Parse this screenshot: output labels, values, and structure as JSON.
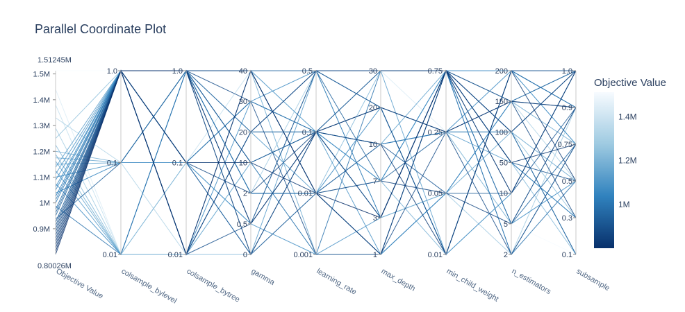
{
  "chart_data": {
    "type": "parallel_coordinates",
    "title": "Parallel Coordinate Plot",
    "axes": [
      {
        "label": "Objective Value",
        "scale": "linear",
        "range": [
          800260,
          1512450
        ],
        "tick_labels": [
          "0.9M",
          "1M",
          "1.1M",
          "1.2M",
          "1.3M",
          "1.4M",
          "1.5M"
        ],
        "tick_values": [
          900000,
          1000000,
          1100000,
          1200000,
          1300000,
          1400000,
          1500000
        ],
        "min_label": "0.80026M",
        "max_label": "1.51245M"
      },
      {
        "label": "colsample_bylevel",
        "scale": "categorical",
        "tick_labels": [
          "0.01",
          "0.1",
          "1.0"
        ]
      },
      {
        "label": "colsample_bytree",
        "scale": "categorical",
        "tick_labels": [
          "0.01",
          "0.1",
          "1.0"
        ]
      },
      {
        "label": "gamma",
        "scale": "categorical",
        "tick_labels": [
          "0",
          "0.5",
          "2",
          "10",
          "20",
          "30",
          "40"
        ]
      },
      {
        "label": "learning_rate",
        "scale": "categorical",
        "tick_labels": [
          "0.001",
          "0.01",
          "0.1",
          "0.5"
        ]
      },
      {
        "label": "max_depth",
        "scale": "categorical",
        "tick_labels": [
          "1",
          "3",
          "7",
          "10",
          "20",
          "30"
        ]
      },
      {
        "label": "min_child_weight",
        "scale": "categorical",
        "tick_labels": [
          "0.01",
          "0.05",
          "0.25",
          "0.75"
        ]
      },
      {
        "label": "n_estimators",
        "scale": "categorical",
        "tick_labels": [
          "2",
          "5",
          "10",
          "50",
          "100",
          "150",
          "200"
        ]
      },
      {
        "label": "subsample",
        "scale": "categorical",
        "tick_labels": [
          "0.1",
          "0.3",
          "0.5",
          "0.75",
          "0.9",
          "1.0"
        ]
      }
    ],
    "lines": [
      {
        "objective": 800260,
        "values": [
          "1.0",
          "0.01",
          "40",
          "0.01",
          "3",
          "0.75",
          "10",
          "1.0"
        ]
      },
      {
        "objective": 812000,
        "values": [
          "1.0",
          "1.0",
          "0.5",
          "0.1",
          "20",
          "0.25",
          "150",
          "0.9"
        ]
      },
      {
        "objective": 825000,
        "values": [
          "1.0",
          "0.1",
          "10",
          "0.01",
          "1",
          "0.75",
          "50",
          "0.75"
        ]
      },
      {
        "objective": 838000,
        "values": [
          "1.0",
          "1.0",
          "0",
          "0.1",
          "10",
          "0.01",
          "200",
          "0.5"
        ]
      },
      {
        "objective": 850000,
        "values": [
          "1.0",
          "0.01",
          "20",
          "0.5",
          "30",
          "0.75",
          "100",
          "1.0"
        ]
      },
      {
        "objective": 862000,
        "values": [
          "1.0",
          "1.0",
          "40",
          "0.01",
          "7",
          "0.05",
          "5",
          "0.9"
        ]
      },
      {
        "objective": 875000,
        "values": [
          "1.0",
          "0.1",
          "2",
          "0.1",
          "3",
          "0.75",
          "150",
          "0.3"
        ]
      },
      {
        "objective": 888000,
        "values": [
          "1.0",
          "1.0",
          "30",
          "0.001",
          "1",
          "0.25",
          "2",
          "0.75"
        ]
      },
      {
        "objective": 900000,
        "values": [
          "1.0",
          "0.01",
          "0.5",
          "0.5",
          "20",
          "0.01",
          "200",
          "1.0"
        ]
      },
      {
        "objective": 912000,
        "values": [
          "1.0",
          "1.0",
          "10",
          "0.1",
          "30",
          "0.75",
          "50",
          "0.5"
        ]
      },
      {
        "objective": 925000,
        "values": [
          "1.0",
          "0.1",
          "0",
          "0.01",
          "10",
          "0.05",
          "10",
          "0.9"
        ]
      },
      {
        "objective": 938000,
        "values": [
          "0.1",
          "1.0",
          "20",
          "0.1",
          "3",
          "0.75",
          "100",
          "0.1"
        ]
      },
      {
        "objective": 950000,
        "values": [
          "1.0",
          "0.01",
          "40",
          "0.5",
          "7",
          "0.25",
          "150",
          "1.0"
        ]
      },
      {
        "objective": 962000,
        "values": [
          "1.0",
          "1.0",
          "2",
          "0.01",
          "1",
          "0.75",
          "5",
          "0.75"
        ]
      },
      {
        "objective": 975000,
        "values": [
          "1.0",
          "0.1",
          "30",
          "0.1",
          "20",
          "0.01",
          "200",
          "0.9"
        ]
      },
      {
        "objective": 988000,
        "values": [
          "0.01",
          "1.0",
          "10",
          "0.001",
          "30",
          "0.75",
          "2",
          "0.5"
        ]
      },
      {
        "objective": 1000000,
        "values": [
          "1.0",
          "1.0",
          "0.5",
          "0.1",
          "10",
          "0.25",
          "100",
          "1.0"
        ]
      },
      {
        "objective": 1012000,
        "values": [
          "1.0",
          "0.01",
          "20",
          "0.5",
          "3",
          "0.75",
          "50",
          "0.3"
        ]
      },
      {
        "objective": 1025000,
        "values": [
          "1.0",
          "1.0",
          "40",
          "0.01",
          "1",
          "0.05",
          "150",
          "0.9"
        ]
      },
      {
        "objective": 1038000,
        "values": [
          "0.1",
          "0.1",
          "0",
          "0.1",
          "7",
          "0.75",
          "200",
          "0.75"
        ]
      },
      {
        "objective": 1050000,
        "values": [
          "1.0",
          "1.0",
          "2",
          "0.01",
          "20",
          "0.01",
          "10",
          "1.0"
        ]
      },
      {
        "objective": 1062000,
        "values": [
          "1.0",
          "0.01",
          "30",
          "0.5",
          "30",
          "0.75",
          "5",
          "0.5"
        ]
      },
      {
        "objective": 1075000,
        "values": [
          "0.01",
          "1.0",
          "10",
          "0.1",
          "10",
          "0.25",
          "200",
          "0.9"
        ]
      },
      {
        "objective": 1088000,
        "values": [
          "1.0",
          "0.1",
          "0.5",
          "0.001",
          "3",
          "0.75",
          "100",
          "0.1"
        ]
      },
      {
        "objective": 1100000,
        "values": [
          "0.1",
          "1.0",
          "40",
          "0.1",
          "1",
          "0.05",
          "150",
          "1.0"
        ]
      },
      {
        "objective": 1112000,
        "values": [
          "1.0",
          "0.01",
          "20",
          "0.01",
          "7",
          "0.75",
          "2",
          "0.75"
        ]
      },
      {
        "objective": 1125000,
        "values": [
          "0.01",
          "1.0",
          "0",
          "0.5",
          "20",
          "0.25",
          "50",
          "0.3"
        ]
      },
      {
        "objective": 1138000,
        "values": [
          "1.0",
          "0.1",
          "30",
          "0.1",
          "30",
          "0.01",
          "200",
          "0.9"
        ]
      },
      {
        "objective": 1150000,
        "values": [
          "0.1",
          "1.0",
          "2",
          "0.01",
          "10",
          "0.75",
          "10",
          "1.0"
        ]
      },
      {
        "objective": 1162000,
        "values": [
          "0.01",
          "0.01",
          "10",
          "0.1",
          "3",
          "0.05",
          "100",
          "0.5"
        ]
      },
      {
        "objective": 1175000,
        "values": [
          "0.1",
          "1.0",
          "40",
          "0.001",
          "1",
          "0.75",
          "150",
          "0.75"
        ]
      },
      {
        "objective": 1188000,
        "values": [
          "0.01",
          "0.1",
          "0.5",
          "0.5",
          "20",
          "0.25",
          "5",
          "0.9"
        ]
      },
      {
        "objective": 1200000,
        "values": [
          "0.1",
          "1.0",
          "20",
          "0.1",
          "7",
          "0.01",
          "200",
          "1.0"
        ]
      },
      {
        "objective": 1225000,
        "values": [
          "0.01",
          "0.01",
          "0",
          "0.01",
          "30",
          "0.75",
          "50",
          "0.1"
        ]
      },
      {
        "objective": 1250000,
        "values": [
          "1.0",
          "0.1",
          "30",
          "0.1",
          "10",
          "0.25",
          "100",
          "0.3"
        ]
      },
      {
        "objective": 1290000,
        "values": [
          "0.01",
          "1.0",
          "2",
          "0.5",
          "3",
          "0.05",
          "2",
          "0.9"
        ]
      },
      {
        "objective": 1330000,
        "values": [
          "0.1",
          "0.01",
          "10",
          "0.001",
          "1",
          "0.75",
          "150",
          "0.5"
        ]
      },
      {
        "objective": 1380000,
        "values": [
          "0.01",
          "0.1",
          "40",
          "0.1",
          "20",
          "0.01",
          "10",
          "1.0"
        ]
      },
      {
        "objective": 1440000,
        "values": [
          "0.01",
          "1.0",
          "0.5",
          "0.5",
          "30",
          "0.25",
          "200",
          "0.75"
        ]
      },
      {
        "objective": 1512450,
        "values": [
          "1.0",
          "0.01",
          "20",
          "0.01",
          "7",
          "0.75",
          "5",
          "0.1"
        ]
      }
    ],
    "colorbar": {
      "title": "Objective Value",
      "colorscale": [
        "#08306b",
        "#3082be",
        "#9ecae1",
        "#f7fbff"
      ],
      "tick_labels": [
        "1M",
        "1.2M",
        "1.4M"
      ],
      "tick_values": [
        1000000,
        1200000,
        1400000
      ]
    }
  }
}
